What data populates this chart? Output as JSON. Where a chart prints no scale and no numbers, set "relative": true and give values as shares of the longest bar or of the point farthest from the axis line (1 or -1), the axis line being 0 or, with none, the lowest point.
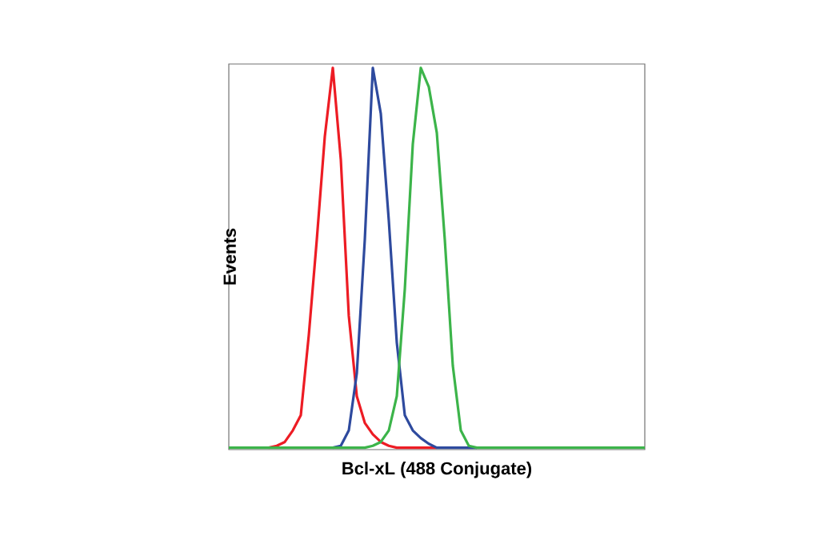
{
  "chart_data": {
    "type": "line",
    "relative": true,
    "xlabel": "Bcl-xL (488 Conjugate)",
    "ylabel": "Events",
    "marker": "none",
    "line_style": "solid",
    "categories": [
      null,
      null,
      null,
      null,
      null,
      null,
      null,
      null,
      null,
      null,
      null,
      null,
      null,
      null,
      null,
      null,
      null,
      null,
      null,
      null,
      null,
      null,
      null,
      null,
      null,
      null,
      null,
      null,
      null,
      null,
      null,
      null,
      null,
      null,
      null,
      null,
      null,
      null,
      null,
      null,
      null,
      null,
      null,
      null,
      null,
      null,
      null,
      null,
      null,
      null,
      null,
      null,
      null
    ],
    "series": [
      {
        "color": "#ed1c24",
        "values": [
          null,
          null,
          null,
          null,
          null,
          0.005,
          0.01,
          0.02,
          0.05,
          0.09,
          0.3,
          0.55,
          0.82,
          1,
          0.76,
          0.35,
          0.14,
          0.07,
          0.04,
          0.02,
          0.01,
          0.005,
          0.005,
          0.005,
          0.005,
          0.005,
          0.005,
          null,
          null,
          null,
          null,
          null,
          null,
          null,
          null,
          null,
          null,
          null,
          null,
          null,
          null,
          null,
          null,
          null,
          null,
          null,
          null,
          null,
          null,
          null,
          null,
          null,
          null
        ]
      },
      {
        "color": "#2e4a9e",
        "values": [
          null,
          null,
          null,
          null,
          null,
          null,
          null,
          null,
          null,
          null,
          null,
          null,
          null,
          0.005,
          0.01,
          0.05,
          0.2,
          0.55,
          1,
          0.88,
          0.6,
          0.28,
          0.09,
          0.05,
          0.03,
          0.015,
          0.005,
          0.005,
          0.005,
          0.005,
          0.005,
          0.005,
          null,
          null,
          null,
          null,
          null,
          null,
          null,
          null,
          null,
          null,
          null,
          null,
          null,
          null,
          null,
          null,
          null,
          null,
          null,
          null,
          null
        ]
      },
      {
        "color": "#3cb44a",
        "values": [
          0.005,
          0.005,
          0.005,
          0.005,
          0.005,
          0.005,
          0.005,
          0.005,
          0.005,
          0.005,
          0.005,
          0.005,
          0.005,
          0.005,
          0.005,
          0.005,
          0.005,
          0.005,
          0.01,
          0.02,
          0.05,
          0.14,
          0.42,
          0.8,
          1,
          0.95,
          0.83,
          0.55,
          0.22,
          0.05,
          0.01,
          0.005,
          0.005,
          0.005,
          0.005,
          0.005,
          0.005,
          0.005,
          0.005,
          0.005,
          0.005,
          0.005,
          0.005,
          0.005,
          0.005,
          0.005,
          0.005,
          0.005,
          0.005,
          0.005,
          0.005,
          0.005,
          0.005
        ]
      }
    ]
  }
}
